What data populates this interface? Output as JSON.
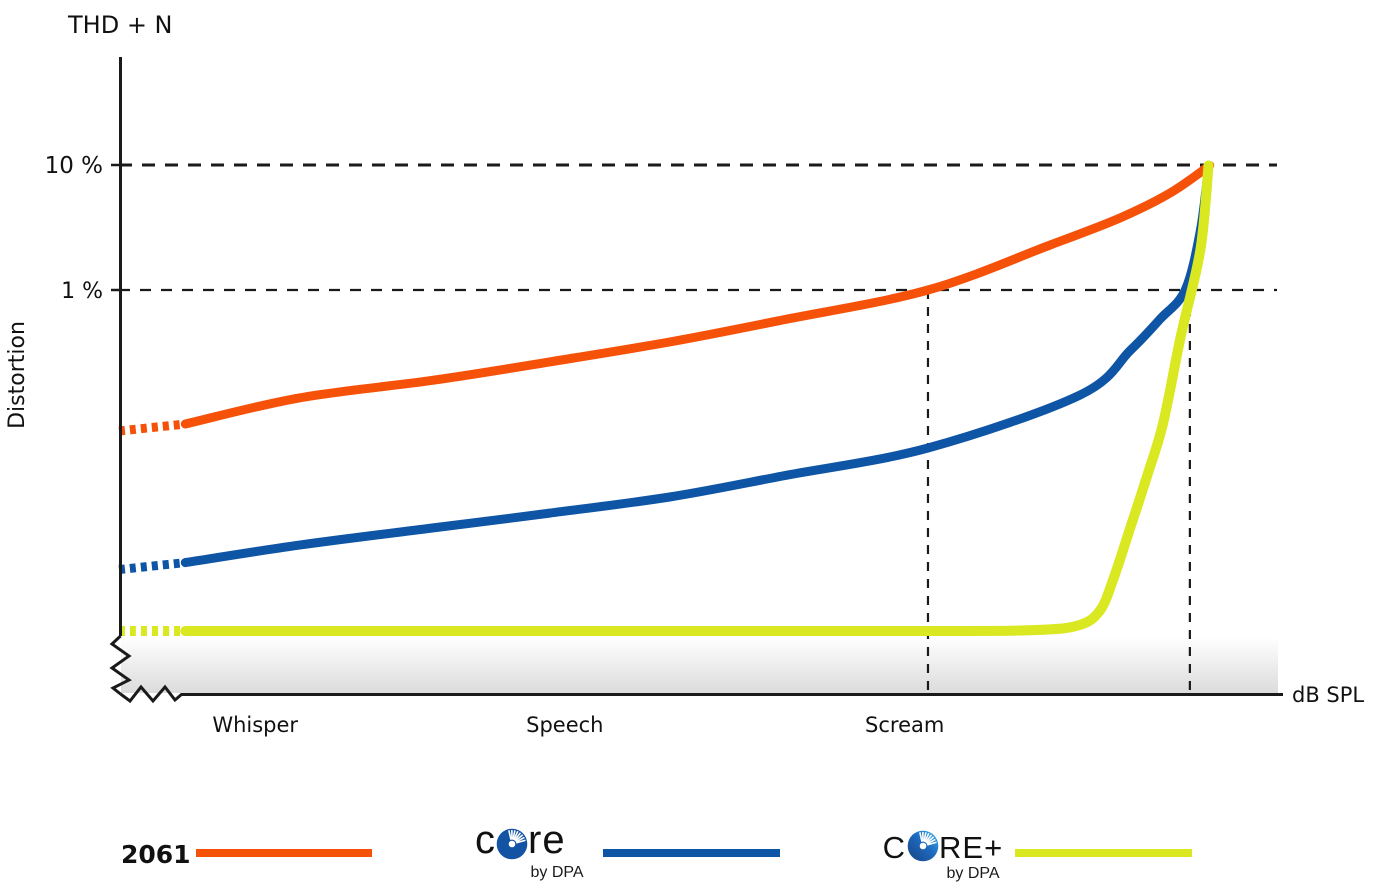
{
  "header": {
    "title": "THD + N"
  },
  "axes": {
    "y_label": "Distortion",
    "x_label": "dB SPL"
  },
  "colors": {
    "c2061": "#F65109",
    "core": "#0F55A5",
    "coreplus": "#D9E821",
    "guide": "#1a1a1a",
    "axis": "#1a1a1a"
  },
  "legend": {
    "item1_label": "2061",
    "core_pre": "c",
    "core_post": "re",
    "core_sub": "by DPA",
    "coreplus_pre": "C",
    "coreplus_post": "RE+",
    "coreplus_sub": "by DPA"
  },
  "chart_data": {
    "type": "line",
    "title": "THD + N",
    "xlabel": "dB SPL",
    "ylabel": "Distortion",
    "y_scale": "log",
    "y_unit": "percent THD+N",
    "x_unit": "relative sound pressure level 0-100",
    "y_domain_pct": [
      0.0006,
      70
    ],
    "x_domain": [
      0,
      100
    ],
    "grid": "off",
    "legend_position": "bottom",
    "y_ticks": [
      {
        "value": 10,
        "label": "10 %"
      },
      {
        "value": 1,
        "label": "1 %"
      }
    ],
    "x_categories": [
      {
        "label": "Whisper",
        "x": 11.7
      },
      {
        "label": "Speech",
        "x": 38.3
      },
      {
        "label": "Scream",
        "x": 67.5
      }
    ],
    "h_guides_pct": [
      10,
      1
    ],
    "v_guides": [
      {
        "x": 69.5,
        "top_pct": 1
      },
      {
        "x": 92.0,
        "top_pct": 1
      }
    ],
    "series": [
      {
        "name": "2061",
        "color": "#F65109",
        "width": 9,
        "dotted_until_x": 5.7,
        "points": [
          [
            0,
            0.0745
          ],
          [
            5.7,
            0.0847
          ],
          [
            15.5,
            0.137
          ],
          [
            27,
            0.19
          ],
          [
            37,
            0.266
          ],
          [
            47.3,
            0.384
          ],
          [
            57,
            0.575
          ],
          [
            69.5,
            1.0
          ],
          [
            80,
            2.29
          ],
          [
            86,
            3.77
          ],
          [
            90.3,
            5.97
          ],
          [
            93.7,
            9.9
          ]
        ]
      },
      {
        "name": "CORE by DPA",
        "color": "#0F55A5",
        "width": 9,
        "dotted_until_x": 5.7,
        "points": [
          [
            0,
            0.0058
          ],
          [
            5.7,
            0.0066
          ],
          [
            15.5,
            0.0091
          ],
          [
            27,
            0.0125
          ],
          [
            37,
            0.0164
          ],
          [
            47.3,
            0.0221
          ],
          [
            57,
            0.0325
          ],
          [
            69.5,
            0.0545
          ],
          [
            82.6,
            0.145
          ],
          [
            86.9,
            0.33
          ],
          [
            89.4,
            0.58
          ],
          [
            91.6,
            1.0
          ],
          [
            92.9,
            3.0
          ],
          [
            93.6,
            9.5
          ]
        ]
      },
      {
        "name": "CORE+ by DPA",
        "color": "#D9E821",
        "width": 10,
        "dotted_until_x": 5.7,
        "points": [
          [
            0,
            0.00187
          ],
          [
            5.7,
            0.00187
          ],
          [
            40,
            0.00187
          ],
          [
            70,
            0.00187
          ],
          [
            79.1,
            0.00191
          ],
          [
            82.6,
            0.0021
          ],
          [
            84.3,
            0.00275
          ],
          [
            85.4,
            0.0048
          ],
          [
            86.9,
            0.0127
          ],
          [
            88.3,
            0.032
          ],
          [
            89.7,
            0.086
          ],
          [
            91.2,
            0.42
          ],
          [
            92.9,
            2.1
          ],
          [
            93.6,
            9.9
          ]
        ]
      }
    ]
  }
}
